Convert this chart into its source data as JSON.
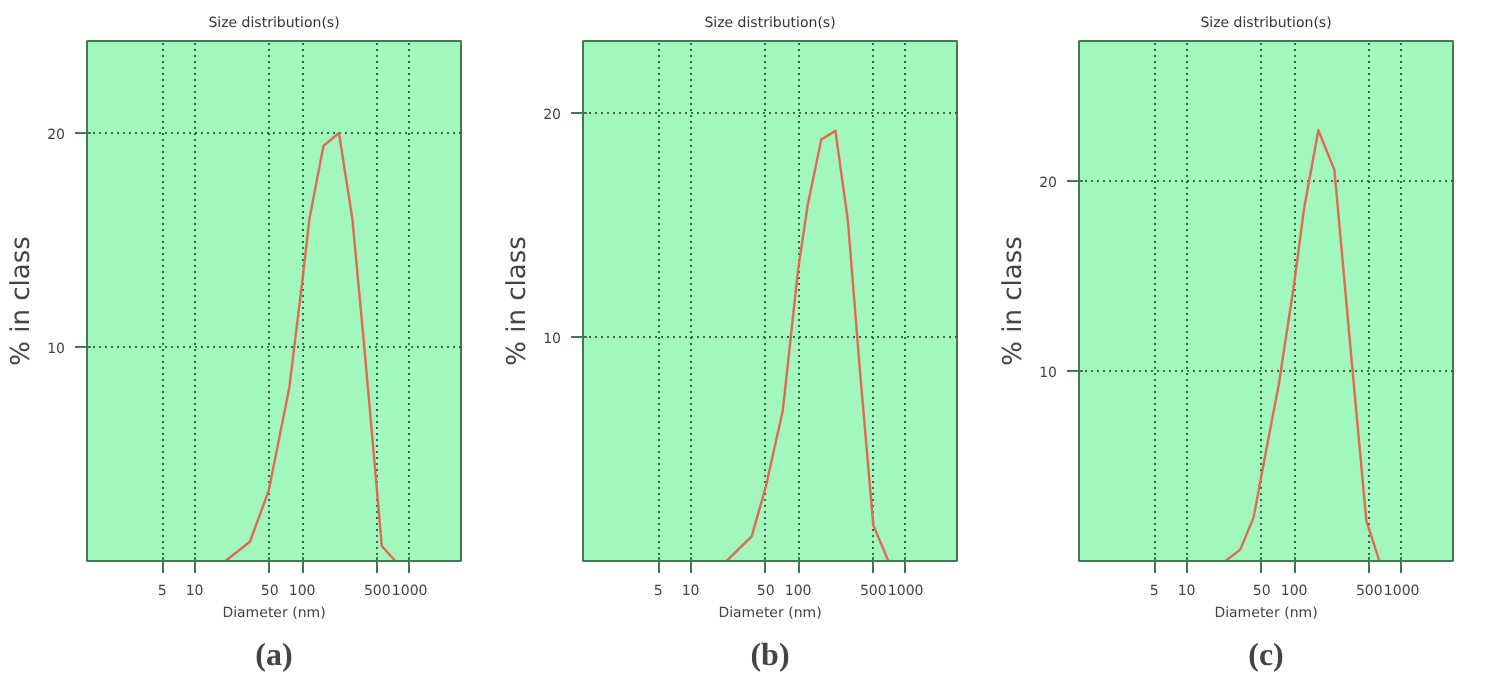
{
  "chart_data": [
    {
      "type": "line",
      "title": "Size distribution(s)",
      "xlabel": "Diameter (nm)",
      "ylabel": "% in class",
      "annotations": [
        "(a)"
      ],
      "log": "x",
      "grid": true,
      "xlim": [
        1,
        3000
      ],
      "xticks": [
        5,
        10,
        50,
        100,
        500,
        1000
      ],
      "ylim": [
        0,
        24.3
      ],
      "yticks": [
        10,
        20
      ],
      "series": [
        {
          "color": "#e06a50",
          "x": [
            19.4,
            32.7,
            49,
            76,
            100,
            117,
            158,
            220,
            293,
            380,
            515,
            550,
            735
          ],
          "values": [
            0,
            0.9,
            3.3,
            8.1,
            13,
            16,
            19.4,
            20,
            16,
            9.9,
            2.4,
            0.7,
            0
          ]
        }
      ]
    },
    {
      "type": "line",
      "title": "Size distribution(s)",
      "xlabel": "Diameter (nm)",
      "ylabel": "% in class",
      "annotations": [
        "(b)"
      ],
      "log": "x",
      "grid": true,
      "xlim": [
        1,
        3000
      ],
      "xticks": [
        5,
        10,
        50,
        100,
        500,
        1000
      ],
      "ylim": [
        0,
        23.2
      ],
      "yticks": [
        10,
        20
      ],
      "series": [
        {
          "color": "#e06a50",
          "x": [
            21.6,
            37,
            50,
            72,
            100,
            122,
            164,
            222,
            290,
            377,
            500,
            690
          ],
          "values": [
            0,
            1.1,
            3.3,
            6.7,
            13,
            15.8,
            18.8,
            19.2,
            15.2,
            8.4,
            1.6,
            0
          ]
        }
      ]
    },
    {
      "type": "line",
      "title": "Size distribution(s)",
      "xlabel": "Diameter (nm)",
      "ylabel": "% in class",
      "annotations": [
        "(c)"
      ],
      "log": "x",
      "grid": true,
      "xlim": [
        1,
        3000
      ],
      "xticks": [
        5,
        10,
        50,
        100,
        500,
        1000
      ],
      "ylim": [
        0,
        27.4
      ],
      "yticks": [
        10,
        20
      ],
      "series": [
        {
          "color": "#e06a50",
          "x": [
            23,
            31.6,
            42,
            50,
            72,
            100,
            124,
            168,
            237,
            351,
            470,
            621
          ],
          "values": [
            0,
            0.6,
            2.3,
            4.6,
            9.3,
            14.6,
            18.6,
            22.7,
            20.6,
            9.9,
            2.1,
            0
          ]
        }
      ]
    }
  ]
}
